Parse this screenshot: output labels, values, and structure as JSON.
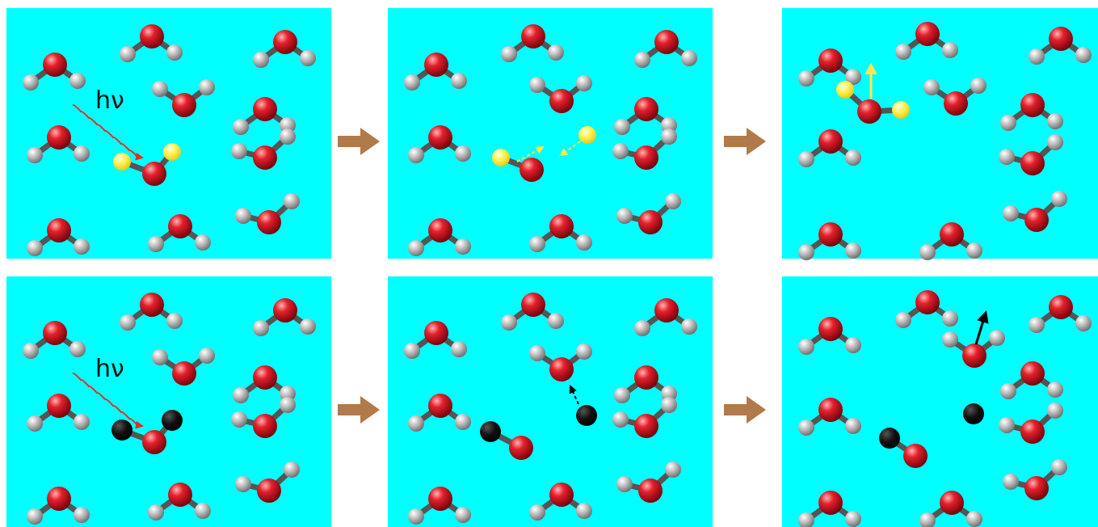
{
  "label_text": "hν",
  "colors": {
    "background": "#00FFFF",
    "oxygen": "#D40012",
    "hydrogen": "#B4B4B4",
    "bond": "#555555",
    "excited_h": "#FFF04A",
    "detached_h": "#000000",
    "photon": "#E0301E",
    "step_arrow": "#B07A4A",
    "yellow_arrow": "#FFE94A",
    "black_arrow": "#000000"
  },
  "rows": [
    {
      "label": "hν",
      "accent": "excited_h"
    },
    {
      "label": "hν",
      "accent": "detached_h"
    }
  ]
}
